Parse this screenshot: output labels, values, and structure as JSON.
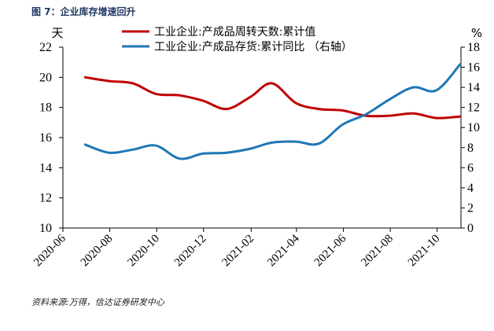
{
  "figure": {
    "title": "图 7：企业库存增速回升",
    "source": "资料来源:万得，信达证券研发中心"
  },
  "chart_data": {
    "type": "line",
    "title": "",
    "x_ticks": [
      "2020-06",
      "2020-08",
      "2020-10",
      "2020-12",
      "2021-02",
      "2021-04",
      "2021-06",
      "2021-08",
      "2021-10"
    ],
    "x_range": [
      "2020-06",
      "2021-11"
    ],
    "left_axis": {
      "unit": "天",
      "range": [
        10,
        22
      ],
      "ticks": [
        10,
        12,
        14,
        16,
        18,
        20,
        22
      ]
    },
    "right_axis": {
      "unit": "%",
      "range": [
        0,
        18
      ],
      "ticks": [
        0,
        2,
        4,
        6,
        8,
        10,
        12,
        14,
        16,
        18
      ]
    },
    "grid": false,
    "legend_position": "top",
    "series": [
      {
        "name": "工业企业:产成品周转天数:累计值",
        "axis": "left",
        "color": "#c00000",
        "points": [
          [
            "2020-06-30",
            20.0
          ],
          [
            "2020-07-31",
            19.75
          ],
          [
            "2020-08-31",
            19.6
          ],
          [
            "2020-09-30",
            18.9
          ],
          [
            "2020-10-31",
            18.8
          ],
          [
            "2020-11-30",
            18.45
          ],
          [
            "2020-12-31",
            17.9
          ],
          [
            "2021-01-31",
            18.7
          ],
          [
            "2021-02-28",
            19.6
          ],
          [
            "2021-03-31",
            18.3
          ],
          [
            "2021-04-30",
            17.9
          ],
          [
            "2021-05-31",
            17.8
          ],
          [
            "2021-06-30",
            17.45
          ],
          [
            "2021-07-31",
            17.45
          ],
          [
            "2021-08-31",
            17.6
          ],
          [
            "2021-09-30",
            17.3
          ],
          [
            "2021-10-31",
            17.4
          ]
        ]
      },
      {
        "name": "工业企业:产成品存货:累计同比 （右轴）",
        "axis": "right",
        "color": "#1f77b4",
        "points": [
          [
            "2020-06-30",
            8.3
          ],
          [
            "2020-07-31",
            7.5
          ],
          [
            "2020-08-31",
            7.8
          ],
          [
            "2020-09-30",
            8.2
          ],
          [
            "2020-10-31",
            6.9
          ],
          [
            "2020-11-30",
            7.4
          ],
          [
            "2020-12-31",
            7.5
          ],
          [
            "2021-01-31",
            7.9
          ],
          [
            "2021-02-28",
            8.5
          ],
          [
            "2021-03-31",
            8.6
          ],
          [
            "2021-04-30",
            8.4
          ],
          [
            "2021-05-31",
            10.3
          ],
          [
            "2021-06-30",
            11.3
          ],
          [
            "2021-07-31",
            12.8
          ],
          [
            "2021-08-31",
            14.0
          ],
          [
            "2021-09-30",
            13.7
          ],
          [
            "2021-10-31",
            16.3
          ]
        ]
      }
    ]
  }
}
